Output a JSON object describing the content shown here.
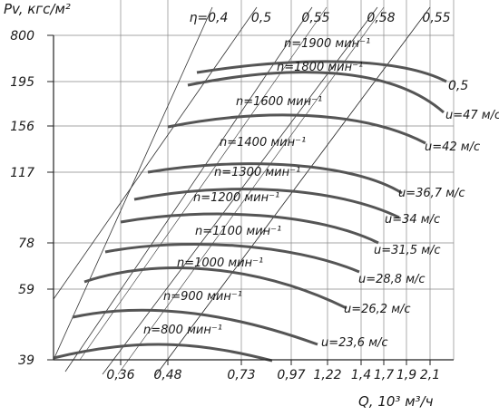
{
  "chart_data": {
    "type": "line",
    "title": "",
    "ylabel": "Pv, кгс/м²",
    "xlabel": "Q, 10³ м³/ч",
    "y_ticks": [
      "800",
      "195",
      "156",
      "117",
      "78",
      "59",
      "39"
    ],
    "x_ticks": [
      "0,36",
      "0,48",
      "0,73",
      "0,97",
      "1,22",
      "1,4",
      "1,7",
      "1,9",
      "2,1"
    ],
    "efficiency": {
      "symbol": "η",
      "labels": [
        "η=0,4",
        "0,5",
        "0,55",
        "0,58",
        "0,55"
      ]
    },
    "series": [
      {
        "name": "n=800 мин⁻¹",
        "velocity": "u=23,6 м/с"
      },
      {
        "name": "n=900 мин⁻¹",
        "velocity": "u=26,2 м/с"
      },
      {
        "name": "n=1000 мин⁻¹",
        "velocity": "u=28,8 м/с"
      },
      {
        "name": "n=1100 мин⁻¹",
        "velocity": "u=31,5 м/с"
      },
      {
        "name": "n=1200 мин⁻¹",
        "velocity": "u=34 м/с"
      },
      {
        "name": "n=1300 мин⁻¹",
        "velocity": "u=36,7 м/с"
      },
      {
        "name": "n=1400 мин⁻¹",
        "velocity": ""
      },
      {
        "name": "n=1600 мин⁻¹",
        "velocity": "u=42 м/с"
      },
      {
        "name": "n=1800 мин⁻¹",
        "velocity": "u=47 м/с"
      },
      {
        "name": "n=1900 мин⁻¹",
        "velocity": ""
      }
    ],
    "extra_labels": [
      "0,5"
    ],
    "grid": true
  }
}
